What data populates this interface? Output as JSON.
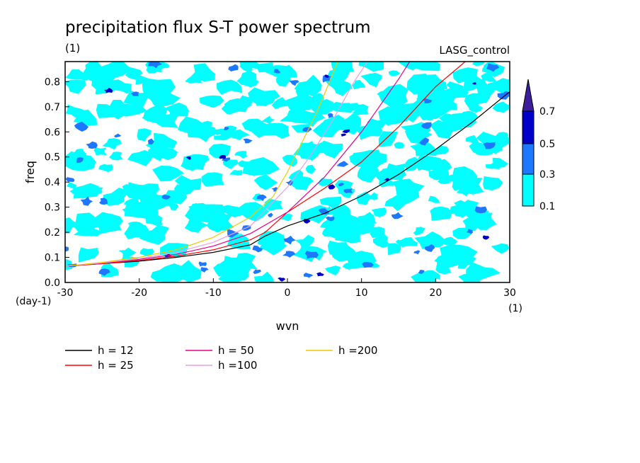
{
  "chart_data": {
    "type": "contour",
    "title": "precipitation flux S-T power spectrum",
    "subtitle_left": "(1)",
    "subtitle_right": "LASG_control",
    "xlabel": "wvn",
    "ylabel": "freq",
    "x_unit": "(1)",
    "y_unit": "(day-1)",
    "xlim": [
      -30,
      30
    ],
    "ylim": [
      0,
      0.88
    ],
    "x_ticks": [
      "-30",
      "-20",
      "-10",
      "0",
      "10",
      "20",
      "30"
    ],
    "y_ticks": [
      "0.0",
      "0.1",
      "0.2",
      "0.3",
      "0.4",
      "0.5",
      "0.6",
      "0.7",
      "0.8"
    ],
    "contour_levels": [
      "0.1",
      "0.3",
      "0.5",
      "0.7"
    ],
    "contour_colors": [
      "#00ffff",
      "#1e78ff",
      "#0000c8",
      "#3c1e9b"
    ],
    "series": [
      {
        "name": "h = 12",
        "color": "#000000",
        "x": [
          -30,
          -25,
          -20,
          -15,
          -10,
          -5,
          -3,
          0,
          5,
          10,
          15,
          20,
          25,
          30
        ],
        "y": [
          0.065,
          0.075,
          0.085,
          0.1,
          0.12,
          0.15,
          0.185,
          0.225,
          0.275,
          0.345,
          0.43,
          0.53,
          0.64,
          0.76
        ]
      },
      {
        "name": "h = 25",
        "color": "#ff0000",
        "x": [
          -30,
          -25,
          -20,
          -15,
          -10,
          -5,
          -3,
          0,
          5,
          10,
          15,
          20,
          24
        ],
        "y": [
          0.065,
          0.075,
          0.088,
          0.105,
          0.13,
          0.17,
          0.2,
          0.28,
          0.375,
          0.48,
          0.62,
          0.78,
          0.88
        ]
      },
      {
        "name": "h = 50",
        "color": "#e6008c",
        "x": [
          -30,
          -25,
          -20,
          -15,
          -10,
          -5,
          0,
          5,
          10,
          15,
          16.5
        ],
        "y": [
          0.065,
          0.077,
          0.092,
          0.112,
          0.145,
          0.195,
          0.28,
          0.42,
          0.6,
          0.81,
          0.88
        ]
      },
      {
        "name": "h =100",
        "color": "#e6a0e6",
        "x": [
          -30,
          -25,
          -20,
          -15,
          -10,
          -5,
          0,
          3,
          6,
          9,
          10.8
        ],
        "y": [
          0.065,
          0.078,
          0.095,
          0.12,
          0.16,
          0.225,
          0.38,
          0.5,
          0.64,
          0.8,
          0.88
        ]
      },
      {
        "name": "h =200",
        "color": "#f0c800",
        "x": [
          -30,
          -25,
          -20,
          -15,
          -10,
          -5,
          -2,
          0,
          2,
          4,
          6.8
        ],
        "y": [
          0.065,
          0.08,
          0.1,
          0.13,
          0.18,
          0.26,
          0.34,
          0.44,
          0.56,
          0.68,
          0.88
        ]
      }
    ],
    "legend_placement": "bottom"
  }
}
